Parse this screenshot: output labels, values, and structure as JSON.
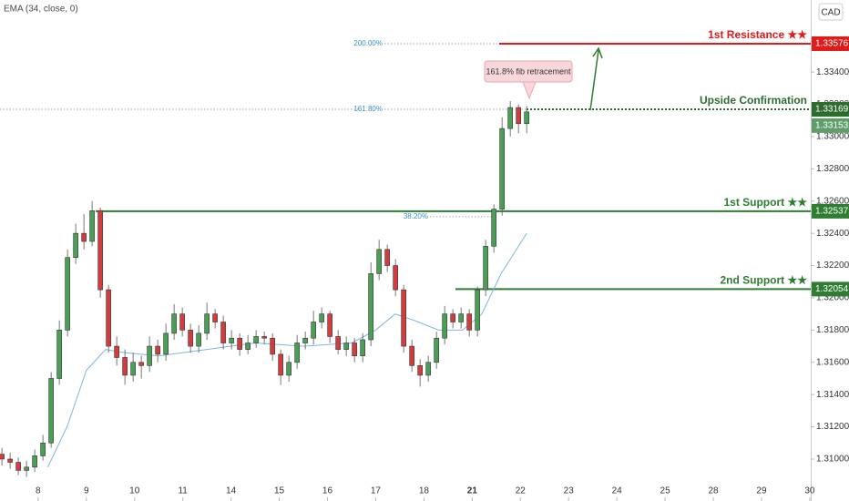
{
  "chart_data": {
    "type": "candlestick",
    "indicator": "EMA (34, close, 0)",
    "currency": "CAD",
    "annotation": "161.8% fib retracement",
    "up_color": "#4a9e56",
    "down_color": "#d23c3c",
    "grid": false,
    "xlim": [
      -0.79,
      16.02
    ],
    "ylim": [
      1.3074,
      1.33847
    ],
    "xticks": [
      {
        "value": 0,
        "label": "8"
      },
      {
        "value": 1,
        "label": "9"
      },
      {
        "value": 2,
        "label": "10"
      },
      {
        "value": 3,
        "label": "11"
      },
      {
        "value": 4,
        "label": "14"
      },
      {
        "value": 5,
        "label": "15"
      },
      {
        "value": 6,
        "label": "16"
      },
      {
        "value": 7,
        "label": "17"
      },
      {
        "value": 8,
        "label": "18"
      },
      {
        "value": 9,
        "label": "21"
      },
      {
        "value": 10,
        "label": "22"
      },
      {
        "value": 11,
        "label": "23"
      },
      {
        "value": 12,
        "label": "24"
      },
      {
        "value": 13,
        "label": "25"
      },
      {
        "value": 14,
        "label": "28"
      },
      {
        "value": 15,
        "label": "29"
      },
      {
        "value": 16,
        "label": "30"
      }
    ],
    "yticks": [
      {
        "value": 1.31,
        "label": "1.31000"
      },
      {
        "value": 1.312,
        "label": "1.31200"
      },
      {
        "value": 1.314,
        "label": "1.31400"
      },
      {
        "value": 1.316,
        "label": "1.31600"
      },
      {
        "value": 1.318,
        "label": "1.31800"
      },
      {
        "value": 1.32,
        "label": "1.32000"
      },
      {
        "value": 1.322,
        "label": "1.32200"
      },
      {
        "value": 1.324,
        "label": "1.32400"
      },
      {
        "value": 1.326,
        "label": "1.32600"
      },
      {
        "value": 1.328,
        "label": "1.32800"
      },
      {
        "value": 1.33,
        "label": "1.33000"
      },
      {
        "value": 1.332,
        "label": "1.33200"
      },
      {
        "value": 1.334,
        "label": "1.33400"
      }
    ],
    "x": [
      -0.75,
      -0.58,
      -0.41,
      -0.24,
      -0.07,
      0.1,
      0.27,
      0.44,
      0.61,
      0.78,
      0.95,
      1.12,
      1.29,
      1.46,
      1.63,
      1.8,
      1.97,
      2.14,
      2.31,
      2.48,
      2.65,
      2.82,
      2.99,
      3.16,
      3.33,
      3.5,
      3.67,
      3.84,
      4.01,
      4.18,
      4.35,
      4.52,
      4.69,
      4.86,
      5.03,
      5.2,
      5.37,
      5.54,
      5.71,
      5.88,
      6.05,
      6.22,
      6.39,
      6.56,
      6.73,
      6.9,
      7.07,
      7.24,
      7.41,
      7.58,
      7.75,
      7.92,
      8.09,
      8.26,
      8.43,
      8.6,
      8.77,
      8.94,
      9.11,
      9.28,
      9.45,
      9.62,
      9.79,
      9.96,
      10.13
    ],
    "open": [
      1.3103,
      1.31,
      1.3098,
      1.3093,
      1.3095,
      1.3102,
      1.311,
      1.315,
      1.318,
      1.3225,
      1.324,
      1.3235,
      1.3254,
      1.3205,
      1.317,
      1.3163,
      1.3152,
      1.316,
      1.3158,
      1.317,
      1.3165,
      1.3178,
      1.319,
      1.318,
      1.317,
      1.3178,
      1.319,
      1.3185,
      1.3172,
      1.3175,
      1.3168,
      1.3172,
      1.3176,
      1.3175,
      1.3165,
      1.3152,
      1.316,
      1.3172,
      1.3175,
      1.3185,
      1.319,
      1.3176,
      1.3168,
      1.3172,
      1.3164,
      1.3174,
      1.3215,
      1.323,
      1.322,
      1.3205,
      1.317,
      1.3158,
      1.3152,
      1.316,
      1.3175,
      1.319,
      1.3185,
      1.319,
      1.318,
      1.3205,
      1.3232,
      1.3255,
      1.3305,
      1.3318,
      1.3308
    ],
    "high": [
      1.3107,
      1.3104,
      1.3101,
      1.3099,
      1.3106,
      1.3115,
      1.3154,
      1.3186,
      1.323,
      1.3246,
      1.3252,
      1.326,
      1.3256,
      1.3208,
      1.3176,
      1.3168,
      1.3166,
      1.3164,
      1.3176,
      1.3174,
      1.3184,
      1.3196,
      1.3194,
      1.3184,
      1.3183,
      1.3197,
      1.3193,
      1.3189,
      1.318,
      1.3178,
      1.3177,
      1.318,
      1.3179,
      1.3178,
      1.3168,
      1.3164,
      1.3177,
      1.3179,
      1.3192,
      1.3194,
      1.3192,
      1.318,
      1.3176,
      1.3175,
      1.3178,
      1.3222,
      1.3236,
      1.3233,
      1.3224,
      1.3208,
      1.3174,
      1.3162,
      1.3164,
      1.3179,
      1.3195,
      1.3193,
      1.3194,
      1.3193,
      1.3207,
      1.3236,
      1.3258,
      1.3312,
      1.3322,
      1.332,
      1.3319
    ],
    "low": [
      1.3096,
      1.3094,
      1.309,
      1.3089,
      1.3092,
      1.3099,
      1.3107,
      1.3146,
      1.3176,
      1.3221,
      1.323,
      1.3232,
      1.32,
      1.3166,
      1.3158,
      1.3146,
      1.3148,
      1.315,
      1.3154,
      1.316,
      1.3161,
      1.3174,
      1.3176,
      1.3166,
      1.3166,
      1.3174,
      1.3181,
      1.3168,
      1.3168,
      1.3164,
      1.3165,
      1.3169,
      1.3171,
      1.3161,
      1.3146,
      1.3148,
      1.3156,
      1.3168,
      1.3171,
      1.3181,
      1.3172,
      1.3165,
      1.3164,
      1.316,
      1.316,
      1.317,
      1.3211,
      1.3216,
      1.3201,
      1.3166,
      1.3154,
      1.3145,
      1.3148,
      1.3156,
      1.3171,
      1.3181,
      1.3181,
      1.3176,
      1.3176,
      1.3201,
      1.3228,
      1.3251,
      1.33,
      1.3302,
      1.3302
    ],
    "close": [
      1.31,
      1.3098,
      1.3093,
      1.3095,
      1.3102,
      1.311,
      1.315,
      1.318,
      1.3225,
      1.324,
      1.3235,
      1.3254,
      1.3205,
      1.317,
      1.3163,
      1.3152,
      1.316,
      1.3158,
      1.317,
      1.3165,
      1.3178,
      1.319,
      1.318,
      1.317,
      1.3178,
      1.319,
      1.3185,
      1.3172,
      1.3175,
      1.3168,
      1.3172,
      1.3176,
      1.3175,
      1.3165,
      1.3152,
      1.316,
      1.3172,
      1.3175,
      1.3185,
      1.319,
      1.3176,
      1.3168,
      1.3172,
      1.3164,
      1.3174,
      1.3215,
      1.323,
      1.322,
      1.3205,
      1.317,
      1.3158,
      1.3152,
      1.316,
      1.3175,
      1.319,
      1.3185,
      1.319,
      1.318,
      1.3205,
      1.3232,
      1.3255,
      1.3305,
      1.3318,
      1.3308,
      1.33153
    ],
    "ema": {
      "color": "#7fb6dc",
      "x": [
        0.2,
        0.6,
        1.0,
        1.4,
        1.8,
        2.5,
        3.5,
        4.5,
        5.5,
        6.5,
        7.0,
        7.4,
        7.8,
        8.3,
        8.8,
        9.2,
        9.6,
        10.13
      ],
      "values": [
        1.3095,
        1.312,
        1.3155,
        1.3168,
        1.3166,
        1.3164,
        1.3168,
        1.3172,
        1.317,
        1.3172,
        1.318,
        1.319,
        1.3186,
        1.318,
        1.318,
        1.319,
        1.3215,
        1.324
      ]
    },
    "levels": [
      {
        "label": "1st Resistance ★★",
        "value": 1.33576,
        "color": "#e01b1b"
      },
      {
        "label": "Upside Confirmation",
        "value": 1.33169,
        "color": "#2e6b2e"
      },
      {
        "label": "1st Support ★★",
        "value": 1.32537,
        "color": "#2e7d32"
      },
      {
        "label": "2nd Support ★★",
        "value": 1.32054,
        "color": "#2e7d32"
      }
    ],
    "fib_levels": [
      {
        "label": "200.00%",
        "value": 1.33576
      },
      {
        "label": "161.80%",
        "value": 1.33169
      },
      {
        "label": "38.20%",
        "value": 1.32503
      }
    ],
    "current_price": 1.33153
  }
}
